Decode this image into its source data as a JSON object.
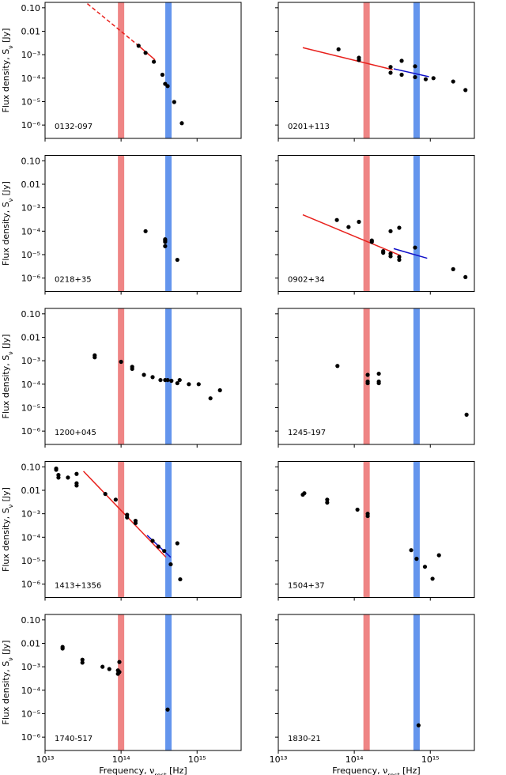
{
  "chart_data": [
    {
      "type": "scatter",
      "label": "0132-097",
      "ylabel": [
        "Flux density, S",
        "ν",
        " [Jy]"
      ],
      "x": [
        170000000000000.0,
        210000000000000.0,
        270000000000000.0,
        350000000000000.0,
        380000000000000.0,
        410000000000000.0,
        500000000000000.0,
        630000000000000.0
      ],
      "y": [
        0.0024,
        0.0012,
        0.0005,
        0.00014,
        5.7e-05,
        4.6e-05,
        9.6e-06,
        1.2e-06
      ],
      "color": "#000000",
      "lines": [
        {
          "color": "#e8211d",
          "dash": true,
          "x": [
            36000000000000.0,
            170000000000000.0
          ],
          "y": [
            0.15,
            0.0024
          ]
        },
        {
          "color": "#e8211d",
          "dash": false,
          "x": [
            170000000000000.0,
            280000000000000.0
          ],
          "y": [
            0.0024,
            0.0006
          ]
        }
      ],
      "bands": [
        {
          "x": 100000000000000.0,
          "color": "#ef8585"
        },
        {
          "x": 420000000000000.0,
          "color": "#6495ed"
        }
      ],
      "log": true,
      "xlim": [
        10000000000000.0,
        3800000000000000.0
      ],
      "ylim": [
        2.7e-07,
        0.17
      ],
      "xticks": [
        {
          "value": 10000000000000.0,
          "label": "10¹³"
        },
        {
          "value": 100000000000000.0,
          "label": "10¹⁴"
        },
        {
          "value": 1000000000000000.0,
          "label": "10¹⁵"
        }
      ],
      "yticks": [
        {
          "value": 1e-06,
          "label": "10⁻⁶"
        },
        {
          "value": 1e-05,
          "label": "10⁻⁵"
        },
        {
          "value": 0.0001,
          "label": "10⁻⁴"
        },
        {
          "value": 0.001,
          "label": "10⁻³"
        },
        0.01,
        {
          "value": 0.1,
          "label": "0.10"
        }
      ]
    },
    {
      "type": "scatter",
      "label": "0201+113",
      "x": [
        62000000000000.0,
        115000000000000.0,
        115000000000000.0,
        300000000000000.0,
        300000000000000.0,
        420000000000000.0,
        420000000000000.0,
        630000000000000.0,
        630000000000000.0,
        870000000000000.0,
        1100000000000000.0,
        2000000000000000.0,
        2900000000000000.0
      ],
      "y": [
        0.0017,
        0.00074,
        0.00059,
        0.0003,
        0.00017,
        0.00055,
        0.00014,
        0.00032,
        0.00011,
        9e-05,
        0.0001,
        7.2e-05,
        3.1e-05
      ],
      "color": "#000000",
      "lines": [
        {
          "color": "#e8211d",
          "dash": false,
          "x": [
            21000000000000.0,
            320000000000000.0
          ],
          "y": [
            0.002,
            0.00023
          ]
        },
        {
          "color": "#1010c8",
          "dash": false,
          "x": [
            330000000000000.0,
            960000000000000.0
          ],
          "y": [
            0.00025,
            0.000115
          ]
        }
      ],
      "bands": [
        {
          "x": 145000000000000.0,
          "color": "#ef8585"
        },
        {
          "x": 660000000000000.0,
          "color": "#6495ed"
        }
      ],
      "log": true,
      "xlim": [
        10000000000000.0,
        3800000000000000.0
      ],
      "ylim": [
        2.7e-07,
        0.17
      ],
      "xticks": [
        {
          "value": 10000000000000.0,
          "label": "10¹³"
        },
        {
          "value": 100000000000000.0,
          "label": "10¹⁴"
        },
        {
          "value": 1000000000000000.0,
          "label": "10¹⁵"
        }
      ],
      "yticks": [
        {
          "value": 1e-06,
          "label": "10⁻⁶"
        },
        {
          "value": 1e-05,
          "label": "10⁻⁵"
        },
        {
          "value": 0.0001,
          "label": "10⁻⁴"
        },
        {
          "value": 0.001,
          "label": "10⁻³"
        },
        0.01,
        {
          "value": 0.1,
          "label": "0.10"
        }
      ]
    },
    {
      "type": "scatter",
      "label": "0218+35",
      "ylabel": [
        "Flux density, S",
        "ν",
        " [Jy]"
      ],
      "x": [
        210000000000000.0,
        380000000000000.0,
        380000000000000.0,
        380000000000000.0,
        380000000000000.0,
        550000000000000.0
      ],
      "y": [
        0.0001,
        4.5e-05,
        4e-05,
        3.5e-05,
        2.3e-05,
        6e-06
      ],
      "color": "#000000",
      "lines": [],
      "bands": [
        {
          "x": 100000000000000.0,
          "color": "#ef8585"
        },
        {
          "x": 420000000000000.0,
          "color": "#6495ed"
        }
      ],
      "log": true,
      "xlim": [
        10000000000000.0,
        3800000000000000.0
      ],
      "ylim": [
        2.7e-07,
        0.17
      ],
      "xticks": [
        {
          "value": 10000000000000.0,
          "label": "10¹³"
        },
        {
          "value": 100000000000000.0,
          "label": "10¹⁴"
        },
        {
          "value": 1000000000000000.0,
          "label": "10¹⁵"
        }
      ],
      "yticks": [
        {
          "value": 1e-06,
          "label": "10⁻⁶"
        },
        {
          "value": 1e-05,
          "label": "10⁻⁵"
        },
        {
          "value": 0.0001,
          "label": "10⁻⁴"
        },
        {
          "value": 0.001,
          "label": "10⁻³"
        },
        0.01,
        {
          "value": 0.1,
          "label": "0.10"
        }
      ]
    },
    {
      "type": "scatter",
      "label": "0902+34",
      "x": [
        59000000000000.0,
        84000000000000.0,
        115000000000000.0,
        170000000000000.0,
        170000000000000.0,
        240000000000000.0,
        240000000000000.0,
        300000000000000.0,
        300000000000000.0,
        390000000000000.0,
        390000000000000.0,
        300000000000000.0,
        390000000000000.0,
        630000000000000.0,
        2000000000000000.0,
        2900000000000000.0
      ],
      "y": [
        0.0003,
        0.00015,
        0.00025,
        4e-05,
        3.5e-05,
        1.4e-05,
        1.2e-05,
        1.1e-05,
        8.5e-06,
        8e-06,
        6e-06,
        0.0001,
        0.00014,
        2e-05,
        2.4e-06,
        1.1e-06
      ],
      "color": "#000000",
      "lines": [
        {
          "color": "#e8211d",
          "dash": false,
          "x": [
            21000000000000.0,
            410000000000000.0
          ],
          "y": [
            0.0005,
            9e-06
          ]
        },
        {
          "color": "#1010c8",
          "dash": false,
          "x": [
            330000000000000.0,
            910000000000000.0
          ],
          "y": [
            1.8e-05,
            7e-06
          ]
        }
      ],
      "bands": [
        {
          "x": 145000000000000.0,
          "color": "#ef8585"
        },
        {
          "x": 660000000000000.0,
          "color": "#6495ed"
        }
      ],
      "log": true,
      "xlim": [
        10000000000000.0,
        3800000000000000.0
      ],
      "ylim": [
        2.7e-07,
        0.17
      ],
      "xticks": [
        {
          "value": 10000000000000.0,
          "label": "10¹³"
        },
        {
          "value": 100000000000000.0,
          "label": "10¹⁴"
        },
        {
          "value": 1000000000000000.0,
          "label": "10¹⁵"
        }
      ],
      "yticks": [
        {
          "value": 1e-06,
          "label": "10⁻⁶"
        },
        {
          "value": 1e-05,
          "label": "10⁻⁵"
        },
        {
          "value": 0.0001,
          "label": "10⁻⁴"
        },
        {
          "value": 0.001,
          "label": "10⁻³"
        },
        0.01,
        {
          "value": 0.1,
          "label": "0.10"
        }
      ]
    },
    {
      "type": "scatter",
      "label": "1200+045",
      "ylabel": [
        "Flux density, S",
        "ν",
        " [Jy]"
      ],
      "x": [
        45000000000000.0,
        45000000000000.0,
        100000000000000.0,
        140000000000000.0,
        140000000000000.0,
        200000000000000.0,
        260000000000000.0,
        330000000000000.0,
        380000000000000.0,
        410000000000000.0,
        460000000000000.0,
        550000000000000.0,
        590000000000000.0,
        780000000000000.0,
        1050000000000000.0,
        1500000000000000.0,
        2000000000000000.0
      ],
      "y": [
        0.0017,
        0.0014,
        0.0009,
        0.00055,
        0.00045,
        0.00025,
        0.0002,
        0.00015,
        0.00015,
        0.00015,
        0.00014,
        0.00011,
        0.00015,
        0.0001,
        0.0001,
        2.5e-05,
        5.5e-05
      ],
      "color": "#000000",
      "lines": [],
      "bands": [
        {
          "x": 100000000000000.0,
          "color": "#ef8585"
        },
        {
          "x": 420000000000000.0,
          "color": "#6495ed"
        }
      ],
      "log": true,
      "xlim": [
        10000000000000.0,
        3800000000000000.0
      ],
      "ylim": [
        2.7e-07,
        0.17
      ],
      "xticks": [
        {
          "value": 10000000000000.0,
          "label": "10¹³"
        },
        {
          "value": 100000000000000.0,
          "label": "10¹⁴"
        },
        {
          "value": 1000000000000000.0,
          "label": "10¹⁵"
        }
      ],
      "yticks": [
        {
          "value": 1e-06,
          "label": "10⁻⁶"
        },
        {
          "value": 1e-05,
          "label": "10⁻⁵"
        },
        {
          "value": 0.0001,
          "label": "10⁻⁴"
        },
        {
          "value": 0.001,
          "label": "10⁻³"
        },
        0.01,
        {
          "value": 0.1,
          "label": "0.10"
        }
      ]
    },
    {
      "type": "scatter",
      "label": "1245-197",
      "x": [
        60000000000000.0,
        150000000000000.0,
        150000000000000.0,
        150000000000000.0,
        210000000000000.0,
        210000000000000.0,
        210000000000000.0,
        3000000000000000.0
      ],
      "y": [
        0.0006,
        0.00025,
        0.00013,
        0.00011,
        0.00028,
        0.00013,
        0.00011,
        5e-06
      ],
      "color": "#000000",
      "lines": [],
      "bands": [
        {
          "x": 145000000000000.0,
          "color": "#ef8585"
        },
        {
          "x": 660000000000000.0,
          "color": "#6495ed"
        }
      ],
      "log": true,
      "xlim": [
        10000000000000.0,
        3800000000000000.0
      ],
      "ylim": [
        2.7e-07,
        0.17
      ],
      "xticks": [
        {
          "value": 10000000000000.0,
          "label": "10¹³"
        },
        {
          "value": 100000000000000.0,
          "label": "10¹⁴"
        },
        {
          "value": 1000000000000000.0,
          "label": "10¹⁵"
        }
      ],
      "yticks": [
        {
          "value": 1e-06,
          "label": "10⁻⁶"
        },
        {
          "value": 1e-05,
          "label": "10⁻⁵"
        },
        {
          "value": 0.0001,
          "label": "10⁻⁴"
        },
        {
          "value": 0.001,
          "label": "10⁻³"
        },
        0.01,
        {
          "value": 0.1,
          "label": "0.10"
        }
      ]
    },
    {
      "type": "scatter",
      "label": "1413+1356",
      "ylabel": [
        "Flux density, S",
        "ν",
        " [Jy]"
      ],
      "x": [
        14000000000000.0,
        14000000000000.0,
        15000000000000.0,
        15000000000000.0,
        20000000000000.0,
        26000000000000.0,
        26000000000000.0,
        26000000000000.0,
        62000000000000.0,
        85000000000000.0,
        120000000000000.0,
        120000000000000.0,
        155000000000000.0,
        155000000000000.0,
        260000000000000.0,
        310000000000000.0,
        370000000000000.0,
        450000000000000.0,
        550000000000000.0,
        600000000000000.0
      ],
      "y": [
        0.085,
        0.075,
        0.045,
        0.035,
        0.035,
        0.05,
        0.02,
        0.016,
        0.007,
        0.004,
        0.0009,
        0.0007,
        0.0005,
        0.0004,
        7e-05,
        4e-05,
        2.6e-05,
        7e-06,
        5.5e-05,
        1.6e-06
      ],
      "color": "#000000",
      "lines": [
        {
          "color": "#e8211d",
          "dash": false,
          "x": [
            32000000000000.0,
            390000000000000.0
          ],
          "y": [
            0.065,
            1.4e-05
          ]
        },
        {
          "color": "#1010c8",
          "dash": false,
          "x": [
            220000000000000.0,
            450000000000000.0
          ],
          "y": [
            0.00012,
            1.4e-05
          ]
        }
      ],
      "bands": [
        {
          "x": 100000000000000.0,
          "color": "#ef8585"
        },
        {
          "x": 420000000000000.0,
          "color": "#6495ed"
        }
      ],
      "log": true,
      "xlim": [
        10000000000000.0,
        3800000000000000.0
      ],
      "ylim": [
        2.7e-07,
        0.17
      ],
      "xticks": [
        {
          "value": 10000000000000.0,
          "label": "10¹³"
        },
        {
          "value": 100000000000000.0,
          "label": "10¹⁴"
        },
        {
          "value": 1000000000000000.0,
          "label": "10¹⁵"
        }
      ],
      "yticks": [
        {
          "value": 1e-06,
          "label": "10⁻⁶"
        },
        {
          "value": 1e-05,
          "label": "10⁻⁵"
        },
        {
          "value": 0.0001,
          "label": "10⁻⁴"
        },
        {
          "value": 0.001,
          "label": "10⁻³"
        },
        0.01,
        {
          "value": 0.1,
          "label": "0.10"
        }
      ]
    },
    {
      "type": "scatter",
      "label": "1504+37",
      "x": [
        21000000000000.0,
        22000000000000.0,
        44000000000000.0,
        44000000000000.0,
        110000000000000.0,
        150000000000000.0,
        150000000000000.0,
        560000000000000.0,
        660000000000000.0,
        850000000000000.0,
        1070000000000000.0,
        1300000000000000.0
      ],
      "y": [
        0.0065,
        0.0075,
        0.004,
        0.003,
        0.0015,
        0.001,
        0.0008,
        2.8e-05,
        1.2e-05,
        5.5e-06,
        1.7e-06,
        1.7e-05
      ],
      "color": "#000000",
      "lines": [],
      "bands": [
        {
          "x": 145000000000000.0,
          "color": "#ef8585"
        },
        {
          "x": 660000000000000.0,
          "color": "#6495ed"
        }
      ],
      "log": true,
      "xlim": [
        10000000000000.0,
        3800000000000000.0
      ],
      "ylim": [
        2.7e-07,
        0.17
      ],
      "xticks": [
        {
          "value": 10000000000000.0,
          "label": "10¹³"
        },
        {
          "value": 100000000000000.0,
          "label": "10¹⁴"
        },
        {
          "value": 1000000000000000.0,
          "label": "10¹⁵"
        }
      ],
      "yticks": [
        {
          "value": 1e-06,
          "label": "10⁻⁶"
        },
        {
          "value": 1e-05,
          "label": "10⁻⁵"
        },
        {
          "value": 0.0001,
          "label": "10⁻⁴"
        },
        {
          "value": 0.001,
          "label": "10⁻³"
        },
        0.01,
        {
          "value": 0.1,
          "label": "0.10"
        }
      ]
    },
    {
      "type": "scatter",
      "label": "1740-517",
      "ylabel": [
        "Flux density, S",
        "ν",
        " [Jy]"
      ],
      "xlabel": [
        "Frequency, ν",
        "rest",
        " [Hz]"
      ],
      "x": [
        17000000000000.0,
        17000000000000.0,
        31000000000000.0,
        31000000000000.0,
        57000000000000.0,
        70000000000000.0,
        91000000000000.0,
        91000000000000.0,
        95000000000000.0,
        95000000000000.0,
        410000000000000.0
      ],
      "y": [
        0.007,
        0.006,
        0.002,
        0.0015,
        0.001,
        0.0008,
        0.0007,
        0.0005,
        0.0016,
        0.0006,
        1.5e-05
      ],
      "color": "#000000",
      "lines": [],
      "bands": [
        {
          "x": 100000000000000.0,
          "color": "#ef8585"
        },
        {
          "x": 420000000000000.0,
          "color": "#6495ed"
        }
      ],
      "log": true,
      "xlim": [
        10000000000000.0,
        3800000000000000.0
      ],
      "ylim": [
        2.7e-07,
        0.17
      ],
      "xticks": [
        {
          "value": 10000000000000.0,
          "label": "10¹³"
        },
        {
          "value": 100000000000000.0,
          "label": "10¹⁴"
        },
        {
          "value": 1000000000000000.0,
          "label": "10¹⁵"
        }
      ],
      "yticks": [
        {
          "value": 1e-06,
          "label": "10⁻⁶"
        },
        {
          "value": 1e-05,
          "label": "10⁻⁵"
        },
        {
          "value": 0.0001,
          "label": "10⁻⁴"
        },
        {
          "value": 0.001,
          "label": "10⁻³"
        },
        0.01,
        {
          "value": 0.1,
          "label": "0.10"
        }
      ]
    },
    {
      "type": "scatter",
      "label": "1830-21",
      "xlabel": [
        "Frequency, ν",
        "rest",
        " [Hz]"
      ],
      "x": [
        700000000000000.0
      ],
      "y": [
        3.2e-06
      ],
      "color": "#000000",
      "lines": [],
      "bands": [
        {
          "x": 145000000000000.0,
          "color": "#ef8585"
        },
        {
          "x": 660000000000000.0,
          "color": "#6495ed"
        }
      ],
      "log": true,
      "xlim": [
        10000000000000.0,
        3800000000000000.0
      ],
      "ylim": [
        2.7e-07,
        0.17
      ],
      "xticks": [
        {
          "value": 10000000000000.0,
          "label": "10¹³"
        },
        {
          "value": 100000000000000.0,
          "label": "10¹⁴"
        },
        {
          "value": 1000000000000000.0,
          "label": "10¹⁵"
        }
      ],
      "yticks": [
        {
          "value": 1e-06,
          "label": "10⁻⁶"
        },
        {
          "value": 1e-05,
          "label": "10⁻⁵"
        },
        {
          "value": 0.0001,
          "label": "10⁻⁴"
        },
        {
          "value": 0.001,
          "label": "10⁻³"
        },
        0.01,
        {
          "value": 0.1,
          "label": "0.10"
        }
      ]
    }
  ]
}
